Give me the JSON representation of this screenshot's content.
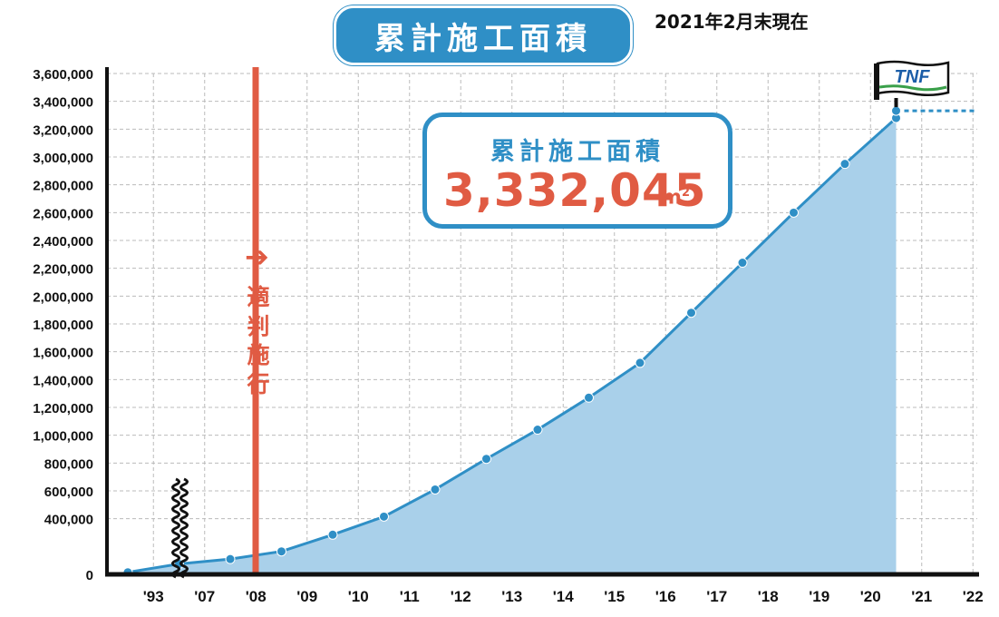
{
  "header": {
    "title": "累計施工面積",
    "date_note": "2021年2月末現在"
  },
  "callout": {
    "label": "累計施工面積",
    "value": "3,332,045",
    "unit": "m",
    "unit_sup": "2"
  },
  "annotation": {
    "law_text": "適判施行",
    "law_arrow": "➔",
    "law_year": "'08"
  },
  "flag": {
    "text": "TNF"
  },
  "colors": {
    "line": "#2f8fc6",
    "fill": "#a9d0ea",
    "accent_red": "#e05b43",
    "grid": "#bbbbbb",
    "flag_green": "#3aa04a",
    "flag_blue": "#1c5ea8"
  },
  "chart_data": {
    "type": "area",
    "x_ticks": [
      "'93",
      "'07",
      "'08",
      "'09",
      "'10",
      "'11",
      "'12",
      "'13",
      "'14",
      "'15",
      "'16",
      "'17",
      "'18",
      "'19",
      "'20",
      "'21",
      "'22"
    ],
    "series": [
      {
        "points": [
          {
            "x": "'93",
            "y": 15000
          },
          {
            "x": "'07",
            "y": 75000
          },
          {
            "x": "'08",
            "y": 110000
          },
          {
            "x": "'09",
            "y": 165000
          },
          {
            "x": "'10",
            "y": 285000
          },
          {
            "x": "'11",
            "y": 415000
          },
          {
            "x": "'12",
            "y": 610000
          },
          {
            "x": "'13",
            "y": 830000
          },
          {
            "x": "'14",
            "y": 1040000
          },
          {
            "x": "'15",
            "y": 1270000
          },
          {
            "x": "'16",
            "y": 1520000
          },
          {
            "x": "'17",
            "y": 1880000
          },
          {
            "x": "'18",
            "y": 2240000
          },
          {
            "x": "'19",
            "y": 2600000
          },
          {
            "x": "'20",
            "y": 2950000
          },
          {
            "x": "'21",
            "y": 3280000
          },
          {
            "x": "'21",
            "y": 3332045
          }
        ]
      }
    ],
    "yticks": [
      "0",
      "400,000",
      "600,000",
      "800,000",
      "1,000,000",
      "1,200,000",
      "1,400,000",
      "1,600,000",
      "1,800,000",
      "2,000,000",
      "2,200,000",
      "2,400,000",
      "2,600,000",
      "2,800,000",
      "3,000,000",
      "3,200,000",
      "3,400,000",
      "3,600,000"
    ],
    "ylim": [
      0,
      3600000
    ],
    "grid": true,
    "axis_break_between": [
      "'93",
      "'07"
    ],
    "current_level": 3332045
  }
}
